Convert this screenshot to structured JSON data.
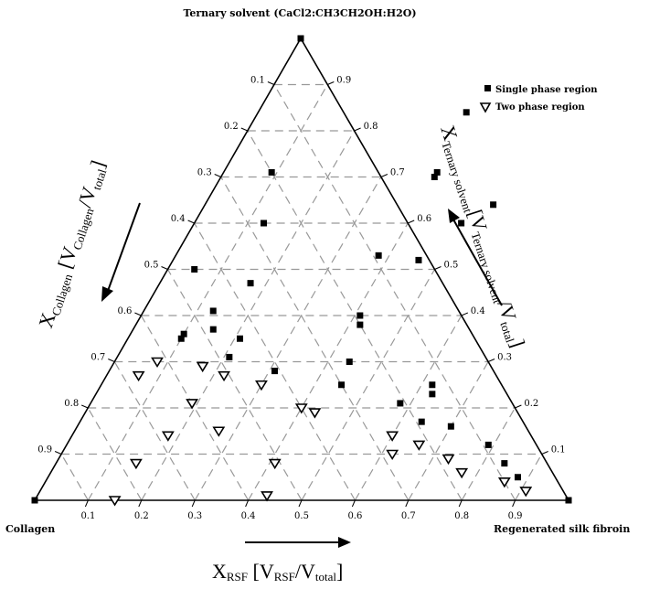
{
  "chart_data": {
    "type": "ternary-scatter",
    "title": "Ternary solvent (CaCl2:CH3CH2OH:H2O)",
    "vertices": {
      "left": "Collagen",
      "right": "Regenerated silk fibroin",
      "top": "Ternary solvent (CaCl2:CH3CH2OH:H2O)"
    },
    "axes": {
      "left": {
        "main": "X",
        "sub1": "Collagen",
        "bracket_open": " [V",
        "sub2": "Collagen",
        "slash": "/V",
        "sub3": "total",
        "bracket_close": "]"
      },
      "right": {
        "main": "X",
        "sub1": "Ternary solvent",
        "bracket_open": "[V",
        "sub2": "Ternary solvent",
        "slash": "/V",
        "sub3": "total",
        "bracket_close": "]"
      },
      "bottom": {
        "main": "X",
        "sub1": "RSF",
        "bracket_open": " [V",
        "sub2": "RSF",
        "slash": "/V",
        "sub3": "total",
        "bracket_close": "]"
      }
    },
    "tick_values": [
      0.1,
      0.2,
      0.3,
      0.4,
      0.5,
      0.6,
      0.7,
      0.8,
      0.9
    ],
    "tick_labels": [
      "0.1",
      "0.2",
      "0.3",
      "0.4",
      "0.5",
      "0.6",
      "0.7",
      "0.8",
      "0.9"
    ],
    "grid": true,
    "legend": {
      "position": "top-right",
      "entries": [
        {
          "label": "Single phase region",
          "marker": "square"
        },
        {
          "label": "Two phase region",
          "marker": "triangle-down-open"
        }
      ]
    },
    "series": [
      {
        "name": "Single phase region",
        "marker": "square",
        "points": [
          {
            "rsf": 0.0,
            "solvent": 1.0
          },
          {
            "rsf": 0.0,
            "solvent": 0.0
          },
          {
            "rsf": 1.0,
            "solvent": 0.0
          },
          {
            "rsf": 0.09,
            "solvent": 0.71
          },
          {
            "rsf": 0.13,
            "solvent": 0.6
          },
          {
            "rsf": 0.05,
            "solvent": 0.5
          },
          {
            "rsf": 0.17,
            "solvent": 0.47
          },
          {
            "rsf": 0.15,
            "solvent": 0.37
          },
          {
            "rsf": 0.13,
            "solvent": 0.41
          },
          {
            "rsf": 0.1,
            "solvent": 0.36
          },
          {
            "rsf": 0.1,
            "solvent": 0.35
          },
          {
            "rsf": 0.21,
            "solvent": 0.35
          },
          {
            "rsf": 0.21,
            "solvent": 0.31
          },
          {
            "rsf": 0.31,
            "solvent": 0.28
          },
          {
            "rsf": 0.38,
            "solvent": 0.53
          },
          {
            "rsf": 0.42,
            "solvent": 0.38
          },
          {
            "rsf": 0.41,
            "solvent": 0.4
          },
          {
            "rsf": 0.46,
            "solvent": 0.52
          },
          {
            "rsf": 0.44,
            "solvent": 0.3
          },
          {
            "rsf": 0.39,
            "solvent": 0.84
          },
          {
            "rsf": 0.4,
            "solvent": 0.71
          },
          {
            "rsf": 0.4,
            "solvent": 0.7
          },
          {
            "rsf": 0.5,
            "solvent": 0.6
          },
          {
            "rsf": 0.54,
            "solvent": 0.64
          },
          {
            "rsf": 0.45,
            "solvent": 0.25
          },
          {
            "rsf": 0.58,
            "solvent": 0.21
          },
          {
            "rsf": 0.64,
            "solvent": 0.17
          },
          {
            "rsf": 0.62,
            "solvent": 0.25
          },
          {
            "rsf": 0.63,
            "solvent": 0.23
          },
          {
            "rsf": 0.7,
            "solvent": 0.16
          },
          {
            "rsf": 0.79,
            "solvent": 0.12
          },
          {
            "rsf": 0.84,
            "solvent": 0.08
          },
          {
            "rsf": 0.88,
            "solvent": 0.05
          }
        ]
      },
      {
        "name": "Two phase region",
        "marker": "triangle-down-open",
        "points": [
          {
            "rsf": 0.08,
            "solvent": 0.3
          },
          {
            "rsf": 0.06,
            "solvent": 0.27
          },
          {
            "rsf": 0.17,
            "solvent": 0.29
          },
          {
            "rsf": 0.22,
            "solvent": 0.27
          },
          {
            "rsf": 0.19,
            "solvent": 0.21
          },
          {
            "rsf": 0.18,
            "solvent": 0.14
          },
          {
            "rsf": 0.15,
            "solvent": 0.08
          },
          {
            "rsf": 0.15,
            "solvent": 0.0
          },
          {
            "rsf": 0.3,
            "solvent": 0.25
          },
          {
            "rsf": 0.27,
            "solvent": 0.15
          },
          {
            "rsf": 0.4,
            "solvent": 0.2
          },
          {
            "rsf": 0.43,
            "solvent": 0.19
          },
          {
            "rsf": 0.41,
            "solvent": 0.08
          },
          {
            "rsf": 0.43,
            "solvent": 0.01
          },
          {
            "rsf": 0.6,
            "solvent": 0.14
          },
          {
            "rsf": 0.62,
            "solvent": 0.1
          },
          {
            "rsf": 0.66,
            "solvent": 0.12
          },
          {
            "rsf": 0.73,
            "solvent": 0.09
          },
          {
            "rsf": 0.77,
            "solvent": 0.06
          },
          {
            "rsf": 0.86,
            "solvent": 0.04
          },
          {
            "rsf": 0.91,
            "solvent": 0.02
          }
        ]
      }
    ]
  }
}
